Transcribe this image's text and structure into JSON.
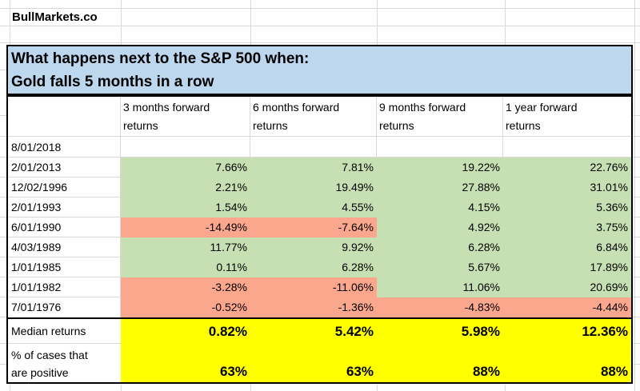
{
  "brand": "BullMarkets.co",
  "title": {
    "line1": "What happens next to the S&P 500 when:",
    "line2": "Gold falls 5 months in a row"
  },
  "columns": [
    {
      "line1": "3 months forward",
      "line2": "returns"
    },
    {
      "line1": "6 months forward",
      "line2": "returns"
    },
    {
      "line1": "9 months forward",
      "line2": "returns"
    },
    {
      "line1": "1 year forward",
      "line2": "returns"
    }
  ],
  "rows": [
    {
      "date": "8/01/2018",
      "values": [
        "",
        "",
        "",
        ""
      ]
    },
    {
      "date": "2/01/2013",
      "values": [
        "7.66%",
        "7.81%",
        "19.22%",
        "22.76%"
      ]
    },
    {
      "date": "12/02/1996",
      "values": [
        "2.21%",
        "19.49%",
        "27.88%",
        "31.01%"
      ]
    },
    {
      "date": "2/01/1993",
      "values": [
        "1.54%",
        "4.55%",
        "4.15%",
        "5.36%"
      ]
    },
    {
      "date": "6/01/1990",
      "values": [
        "-14.49%",
        "-7.64%",
        "4.92%",
        "3.75%"
      ]
    },
    {
      "date": "4/03/1989",
      "values": [
        "11.77%",
        "9.92%",
        "6.28%",
        "6.84%"
      ]
    },
    {
      "date": "1/01/1985",
      "values": [
        "0.11%",
        "6.28%",
        "5.67%",
        "17.89%"
      ]
    },
    {
      "date": "1/01/1982",
      "values": [
        "-3.28%",
        "-11.06%",
        "11.06%",
        "20.69%"
      ]
    },
    {
      "date": "7/01/1976",
      "values": [
        "-0.52%",
        "-1.36%",
        "-4.83%",
        "-4.44%"
      ]
    }
  ],
  "summary": {
    "median": {
      "label": "Median returns",
      "values": [
        "0.82%",
        "5.42%",
        "5.98%",
        "12.36%"
      ]
    },
    "pct_positive": {
      "label_line1": "% of cases that",
      "label_line2": "are positive",
      "values": [
        "63%",
        "63%",
        "88%",
        "88%"
      ]
    }
  },
  "colors": {
    "positive_fill": "#C6E0B4",
    "negative_fill": "#FAA78E",
    "summary_fill": "#FFFF00",
    "title_fill": "#BDD7EE",
    "gridline": "#D9D9D9",
    "border": "#000000"
  }
}
